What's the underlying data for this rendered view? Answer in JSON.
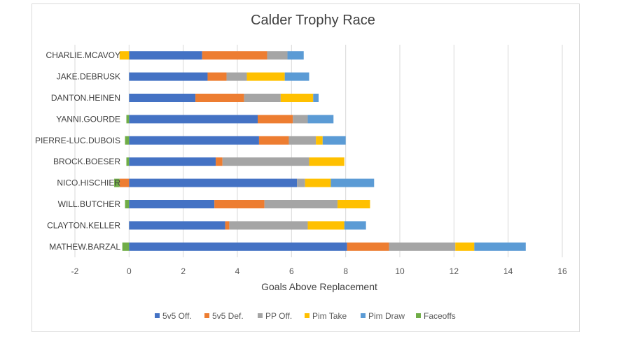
{
  "chart_data": {
    "type": "bar",
    "orientation": "horizontal",
    "stacked": true,
    "title": "Calder Trophy Race",
    "xlabel": "Goals Above Replacement",
    "ylabel": "",
    "xlim": [
      -2,
      16
    ],
    "xticks": [
      "-2",
      "0",
      "2",
      "4",
      "6",
      "8",
      "10",
      "12",
      "14",
      "16"
    ],
    "grid": true,
    "legend_position": "bottom",
    "categories": [
      "MATHEW.BARZAL",
      "CLAYTON.KELLER",
      "WILL.BUTCHER",
      "NICO.HISCHIER",
      "BROCK.BOESER",
      "PIERRE-LUC.DUBOIS",
      "YANNI.GOURDE",
      "DANTON.HEINEN",
      "JAKE.DEBRUSK",
      "CHARLIE.MCAVOY"
    ],
    "series": [
      {
        "name": "5v5 Off.",
        "color": "#4472c4",
        "values": [
          8.05,
          3.55,
          3.15,
          6.2,
          3.2,
          4.8,
          4.75,
          2.45,
          2.9,
          2.7
        ]
      },
      {
        "name": "5v5 Def.",
        "color": "#ed7d31",
        "values": [
          1.55,
          0.15,
          1.85,
          -0.35,
          0.25,
          1.1,
          1.3,
          1.8,
          0.7,
          2.4
        ]
      },
      {
        "name": "PP Off.",
        "color": "#a5a5a5",
        "values": [
          2.45,
          2.9,
          2.7,
          0.3,
          3.2,
          1.0,
          0.55,
          1.35,
          0.75,
          0.75
        ]
      },
      {
        "name": "Pim Take",
        "color": "#ffc000",
        "values": [
          0.7,
          1.35,
          1.2,
          0.95,
          1.3,
          0.25,
          0.0,
          1.2,
          1.4,
          -0.35
        ]
      },
      {
        "name": "Pim Draw",
        "color": "#5b9bd5",
        "values": [
          1.9,
          0.8,
          0.0,
          1.6,
          0.0,
          0.85,
          0.95,
          0.2,
          0.9,
          0.6
        ]
      },
      {
        "name": "Faceoffs",
        "color": "#70ad47",
        "values": [
          -0.25,
          0.0,
          -0.15,
          -0.2,
          -0.1,
          -0.15,
          -0.1,
          0.0,
          0.0,
          0.0
        ]
      }
    ]
  }
}
